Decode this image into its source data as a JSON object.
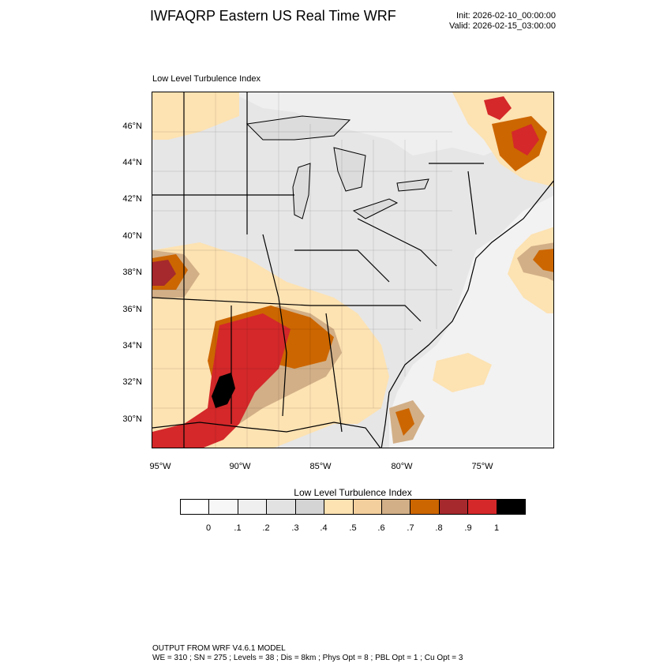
{
  "header": {
    "title": "IWFAQRP Eastern US Real Time WRF",
    "init": "Init: 2026-02-10_00:00:00",
    "valid": "Valid: 2026-02-15_03:00:00"
  },
  "map": {
    "subtitle": "Low Level Turbulence Index",
    "lat_labels": [
      "46°N",
      "44°N",
      "42°N",
      "40°N",
      "38°N",
      "36°N",
      "34°N",
      "32°N",
      "30°N"
    ],
    "lon_labels": [
      "95°W",
      "90°W",
      "85°W",
      "80°W",
      "75°W"
    ],
    "colors": {
      "land_low": "#e8e8e8",
      "ocean": "#f4f4f4",
      "mid": "#fde2b2",
      "high": "#cc6600",
      "very_high": "#d4282a",
      "extreme": "#000000",
      "lake": "#e0e0e0"
    }
  },
  "legend": {
    "title": "Low Level Turbulence Index",
    "colors": [
      "#ffffff",
      "#f7f7f7",
      "#efefef",
      "#e2e2e2",
      "#d4d4d4",
      "#fde2b2",
      "#f3cf9d",
      "#d2af87",
      "#cc6600",
      "#a5292d",
      "#d4282a",
      "#000000"
    ],
    "ticks": [
      "0",
      ".1",
      ".2",
      ".3",
      ".4",
      ".5",
      ".6",
      ".7",
      ".8",
      ".9",
      "1"
    ]
  },
  "footer": {
    "line1": "OUTPUT FROM WRF V4.6.1 MODEL",
    "line2": "WE = 310 ; SN = 275 ; Levels = 38 ; Dis = 8km ; Phys Opt = 8 ; PBL Opt = 1 ; Cu Opt = 3"
  }
}
